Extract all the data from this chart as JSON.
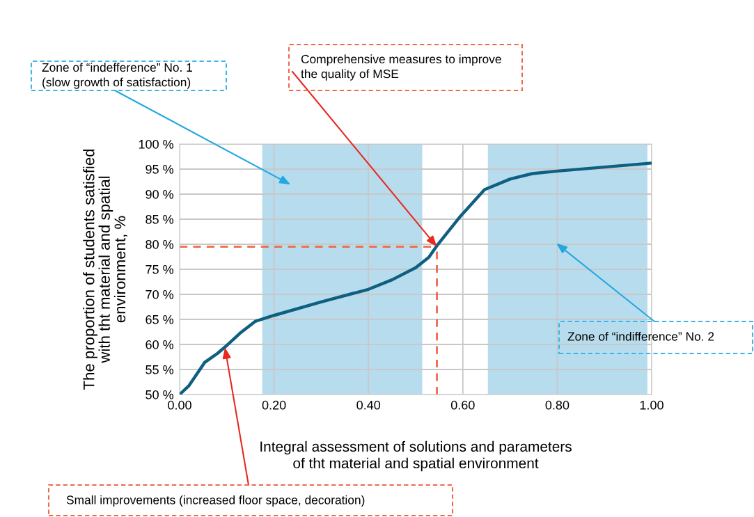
{
  "chart_data": {
    "type": "line",
    "xlabel": "Integral assessment of solutions and parameters\nof tht material and spatial environment",
    "ylabel": "The proportion of students satisfied\nwith tht material and spatial\nenvironment, %",
    "series": [
      {
        "color": "#0f5f80",
        "x": [
          0,
          0.02,
          0.053,
          0.08,
          0.1,
          0.13,
          0.16,
          0.2,
          0.3,
          0.4,
          0.45,
          0.5,
          0.528,
          0.545,
          0.595,
          0.646,
          0.7,
          0.747,
          0.8,
          0.9,
          1.0
        ],
        "values": [
          50,
          51.8,
          56.4,
          58.2,
          59.8,
          62.4,
          64.6,
          65.8,
          68.5,
          71.0,
          72.9,
          75.3,
          77.4,
          79.7,
          85.6,
          90.9,
          93.0,
          94.1,
          94.6,
          95.4,
          96.2
        ]
      }
    ],
    "xlim": [
      0,
      1.0
    ],
    "xticks": [
      {
        "value": 0,
        "label": "0.00"
      },
      {
        "value": 0.2,
        "label": "0.20"
      },
      {
        "value": 0.4,
        "label": "0.40"
      },
      {
        "value": 0.6,
        "label": "0.60"
      },
      {
        "value": 0.8,
        "label": "0.80"
      },
      {
        "value": 1.0,
        "label": "1.00"
      }
    ],
    "ylim": [
      50,
      100
    ],
    "yticks": [
      {
        "value": 50,
        "label": "50 %"
      },
      {
        "value": 55,
        "label": "55 %"
      },
      {
        "value": 60,
        "label": "60 %"
      },
      {
        "value": 65,
        "label": "65 %"
      },
      {
        "value": 70,
        "label": "70 %"
      },
      {
        "value": 75,
        "label": "75 %"
      },
      {
        "value": 80,
        "label": "80 %"
      },
      {
        "value": 85,
        "label": "85 %"
      },
      {
        "value": 90,
        "label": "90 %"
      },
      {
        "value": 95,
        "label": "95 %"
      },
      {
        "value": 100,
        "label": "100 %"
      }
    ],
    "grid": true,
    "bands": [
      {
        "axis": "x",
        "from": 0.175,
        "to": 0.514,
        "color": "#b7dcee"
      },
      {
        "axis": "x",
        "from": 0.653,
        "to": 0.991,
        "color": "#b7dcee"
      }
    ],
    "ref_lines": [
      {
        "axis": "y",
        "value": 79.5,
        "color": "#ee6a4a",
        "line_style": "dashed"
      },
      {
        "axis": "x",
        "value": 0.545,
        "color": "#ee6a4a",
        "line_style": "dashed"
      }
    ],
    "annotations": [
      "Zone of “indefference” No. 1\n(slow growth of satisfaction)",
      {
        "text": "Comprehensive measures to improve\nthe quality of MSE",
        "x": 0.545,
        "y": 79.5
      },
      "Zone of “indifference” No. 2",
      {
        "text": "Small improvements (increased floor space, decoration)",
        "x": 0.096,
        "y": 59.4
      }
    ]
  }
}
